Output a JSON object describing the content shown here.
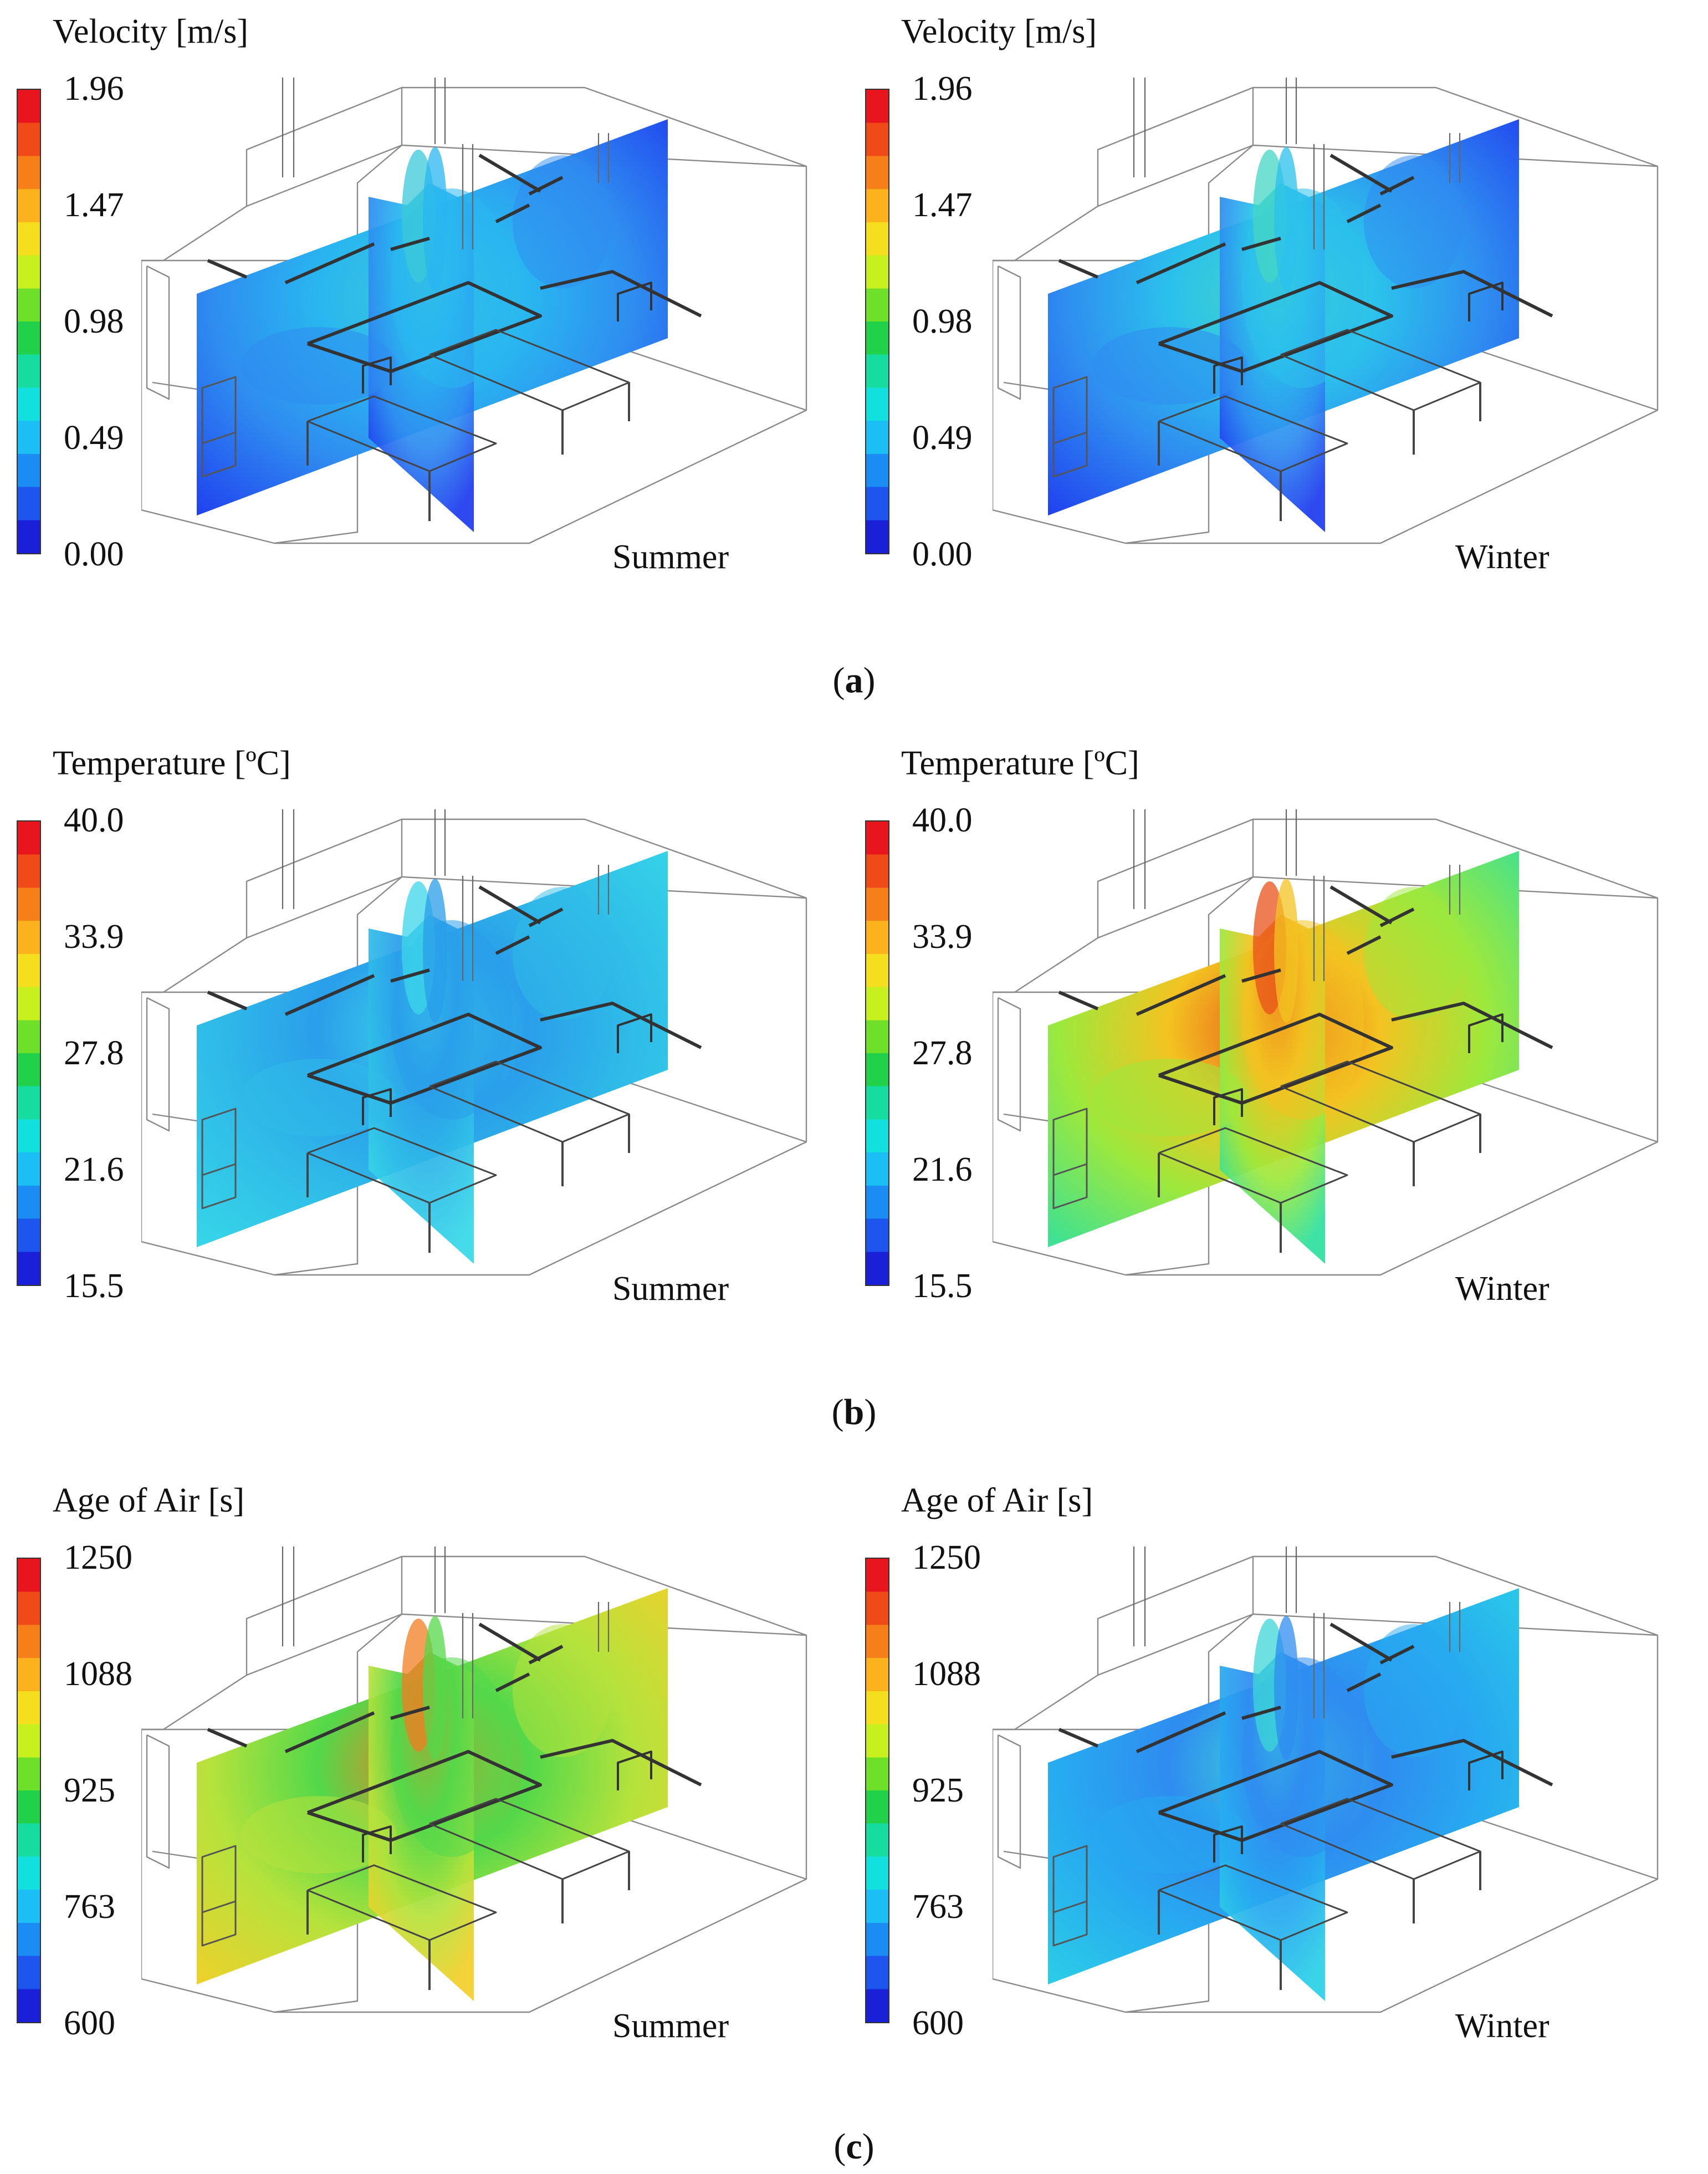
{
  "panels": [
    {
      "id": "a",
      "caption_open": "(",
      "caption_letter": "a",
      "caption_close": ")",
      "legend_title": "Velocity [m/s]",
      "ticks": [
        "1.96",
        "1.47",
        "0.98",
        "0.49",
        "0.00"
      ],
      "left": {
        "season": "Summer"
      },
      "right": {
        "season": "Winter"
      }
    },
    {
      "id": "b",
      "caption_open": "(",
      "caption_letter": "b",
      "caption_close": ")",
      "legend_title": "Temperature [ºC]",
      "ticks": [
        "40.0",
        "33.9",
        "27.8",
        "21.6",
        "15.5"
      ],
      "left": {
        "season": "Summer"
      },
      "right": {
        "season": "Winter"
      }
    },
    {
      "id": "c",
      "caption_open": "(",
      "caption_letter": "c",
      "caption_close": ")",
      "legend_title": "Age of Air [s]",
      "ticks": [
        "1250",
        "1088",
        "925",
        "763",
        "600"
      ],
      "left": {
        "season": "Summer"
      },
      "right": {
        "season": "Winter"
      }
    }
  ],
  "colormap": [
    "#e8141e",
    "#f04a18",
    "#f77f1a",
    "#fbb21c",
    "#f5de1e",
    "#c8f01e",
    "#6fe02a",
    "#22d14a",
    "#16dca0",
    "#12e0df",
    "#1cbff5",
    "#1c8cf5",
    "#1e55ee",
    "#1a1fd8"
  ],
  "fields": {
    "a_left": {
      "base": "#1f3bef",
      "accents": [
        "#2f8cf0",
        "#29b6f0",
        "#3bc9d8"
      ]
    },
    "a_right": {
      "base": "#1f3bef",
      "accents": [
        "#2f8cf0",
        "#2bc0ec",
        "#44d6c6"
      ]
    },
    "b_left": {
      "base": "#37d8e8",
      "accents": [
        "#2fbce8",
        "#2a9eea",
        "#3cd6ea"
      ]
    },
    "b_right": {
      "base": "#2fe0a0",
      "accents": [
        "#9ee83c",
        "#f3c321",
        "#e8521a"
      ]
    },
    "c_left": {
      "base": "#f3cf2a",
      "accents": [
        "#b6e23c",
        "#53d84a",
        "#f07e22"
      ]
    },
    "c_right": {
      "base": "#2bd0e6",
      "accents": [
        "#27aaf0",
        "#2f8cf0",
        "#3dd6d8"
      ]
    }
  }
}
